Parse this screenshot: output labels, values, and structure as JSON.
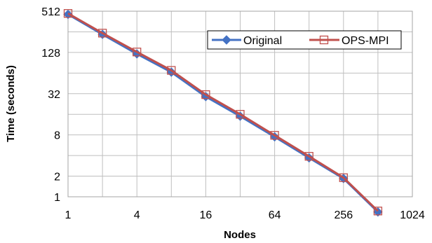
{
  "chart_data": {
    "type": "line",
    "title": "",
    "xlabel": "Nodes",
    "ylabel": "Time (seconds)",
    "x_scale": "log2",
    "y_scale": "log2",
    "xlim": [
      1,
      1024
    ],
    "ylim": [
      1,
      512
    ],
    "x_ticks": [
      "1",
      "4",
      "16",
      "64",
      "256",
      "1024"
    ],
    "y_ticks": [
      "1",
      "2",
      "8",
      "32",
      "128",
      "512"
    ],
    "grid": true,
    "legend_position": "top-right",
    "series": [
      {
        "name": "Original",
        "color": "#4472c4",
        "marker": "diamond",
        "x": [
          1,
          2,
          4,
          8,
          16,
          32,
          64,
          128,
          256,
          512
        ],
        "y": [
          460,
          235,
          122,
          66,
          29,
          15,
          7.5,
          3.7,
          1.85,
          0.6
        ]
      },
      {
        "name": "OPS-MPI",
        "color": "#c0504d",
        "marker": "square",
        "x": [
          1,
          2,
          4,
          8,
          16,
          32,
          64,
          128,
          256,
          512
        ],
        "y": [
          475,
          245,
          130,
          70,
          31,
          16,
          7.9,
          3.9,
          1.9,
          0.62
        ]
      }
    ]
  }
}
